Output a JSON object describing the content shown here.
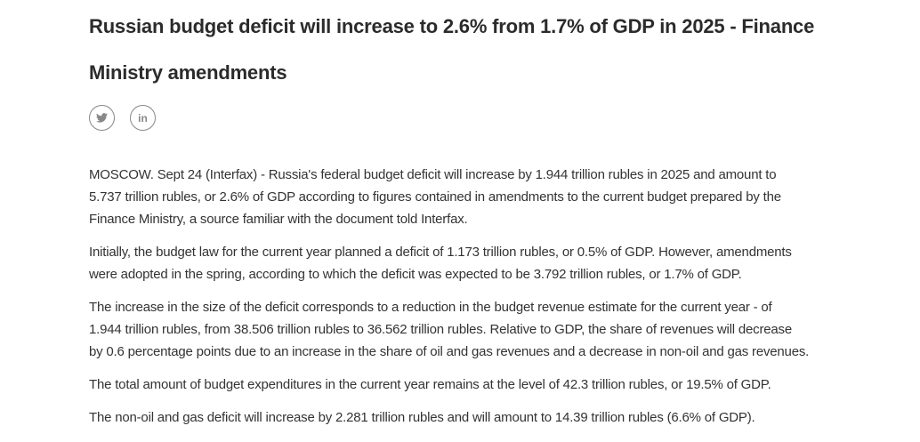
{
  "article": {
    "title_lines": [
      "Russian budget deficit will increase to 2.6% from 1.7% of GDP in 2025 - Finance",
      "Ministry amendments"
    ],
    "share": {
      "linkedin": "in"
    },
    "paragraphs": [
      [
        "MOSCOW. Sept 24 (Interfax) - Russia's federal budget deficit will increase by 1.944 trillion rubles in 2025 and amount to",
        "5.737 trillion rubles, or 2.6% of GDP according to figures contained in amendments to the current budget prepared by the",
        "Finance Ministry, a source familiar with the document told Interfax."
      ],
      [
        "Initially, the budget law for the current year planned a deficit of 1.173 trillion rubles, or 0.5% of GDP. However, amendments",
        "were adopted in the spring, according to which the deficit was expected to be 3.792 trillion rubles, or 1.7% of GDP."
      ],
      [
        "The increase in the size of the deficit corresponds to a reduction in the budget revenue estimate for the current year - of",
        "1.944 trillion rubles, from 38.506 trillion rubles to 36.562 trillion rubles. Relative to GDP, the share of revenues will decrease",
        "by 0.6 percentage points due to an increase in the share of oil and gas revenues and a decrease in non-oil and gas revenues."
      ],
      [
        "The total amount of budget expenditures in the current year remains at the level of 42.3 trillion rubles, or 19.5% of GDP."
      ],
      [
        "The non-oil and gas deficit will increase by 2.281 trillion rubles and will amount to 14.39 trillion rubles (6.6% of GDP)."
      ]
    ]
  }
}
